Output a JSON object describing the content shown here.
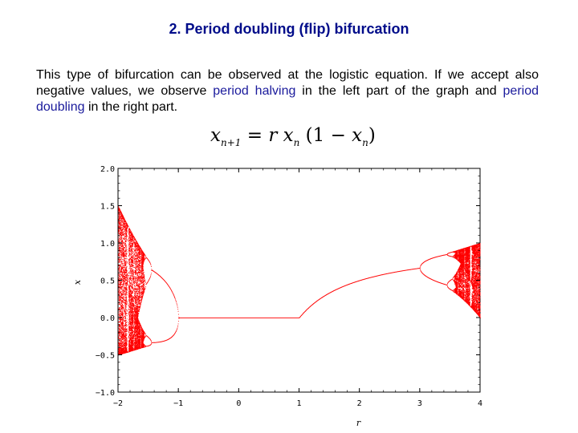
{
  "title": "2. Period doubling (flip) bifurcation",
  "paragraph": {
    "part1": "This type of bifurcation can be observed at the logistic equation. If we accept also negative values, we observe ",
    "link1": "period halving",
    "part2": " in the left part of the graph and ",
    "link2": "period doubling",
    "part3": " in the right part."
  },
  "formula": {
    "x": "x",
    "sub_n1": "n+1",
    "eq": " = ",
    "r": "r",
    "x2": "x",
    "sub_n": "n",
    "open": " (1 − ",
    "x3": "x",
    "sub_n2": "n",
    "close": ")"
  },
  "chart_data": {
    "type": "scatter",
    "title": "",
    "xlabel": "r",
    "ylabel": "x",
    "xlim": [
      -2,
      4
    ],
    "ylim": [
      -1,
      2
    ],
    "x_ticks": [
      {
        "v": -2,
        "label": "−2"
      },
      {
        "v": -1,
        "label": "−1"
      },
      {
        "v": 0,
        "label": "0"
      },
      {
        "v": 1,
        "label": "1"
      },
      {
        "v": 2,
        "label": "2"
      },
      {
        "v": 3,
        "label": "3"
      },
      {
        "v": 4,
        "label": "4"
      }
    ],
    "y_ticks": [
      {
        "v": -1,
        "label": "−1.0"
      },
      {
        "v": -0.5,
        "label": "−0.5"
      },
      {
        "v": 0,
        "label": "0.0"
      },
      {
        "v": 0.5,
        "label": "0.5"
      },
      {
        "v": 1,
        "label": "1.0"
      },
      {
        "v": 1.5,
        "label": "1.5"
      },
      {
        "v": 2,
        "label": "2.0"
      }
    ],
    "grid": false,
    "color": "#ff0000",
    "equation": "x_{n+1} = r x_n (1 - x_n)"
  }
}
